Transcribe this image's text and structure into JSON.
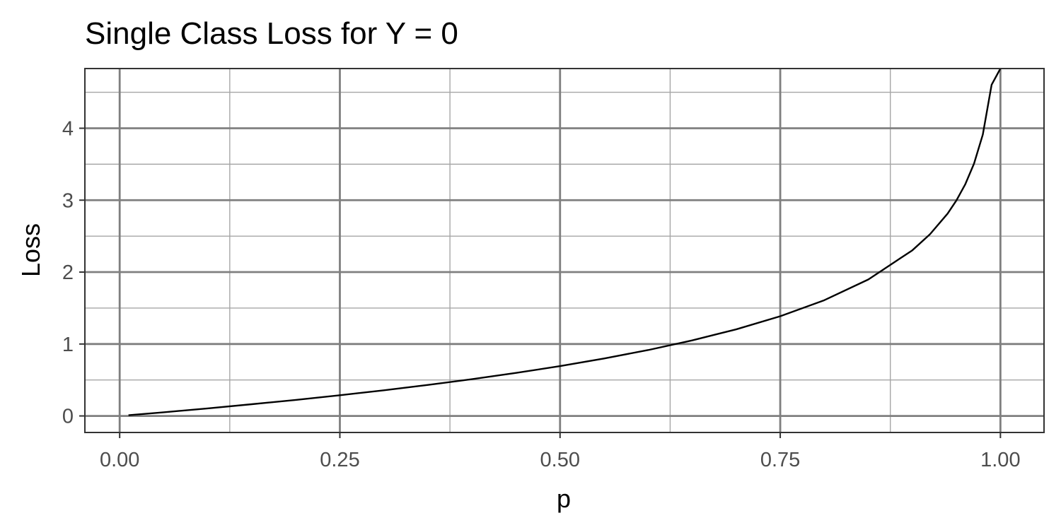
{
  "chart_data": {
    "type": "line",
    "title": "Single Class Loss for Y = 0",
    "xlabel": "p",
    "ylabel": "Loss",
    "xlim": [
      -0.0395,
      1.0495
    ],
    "ylim": [
      -0.23,
      4.83
    ],
    "x_ticks": [
      0,
      0.25,
      0.5,
      0.75,
      1
    ],
    "x_tick_labels": [
      "0.00",
      "0.25",
      "0.50",
      "0.75",
      "1.00"
    ],
    "y_ticks": [
      0,
      1,
      2,
      3,
      4
    ],
    "y_tick_labels": [
      "0",
      "1",
      "2",
      "3",
      "4"
    ],
    "x_minor_ticks": [
      0.125,
      0.375,
      0.625,
      0.875
    ],
    "y_minor_ticks": [
      0.5,
      1.5,
      2.5,
      3.5,
      4.5
    ],
    "grid": true,
    "legend": "none",
    "series": [
      {
        "line_color": "#000000",
        "x": [
          0.01,
          0.05,
          0.1,
          0.15,
          0.2,
          0.25,
          0.3,
          0.35,
          0.4,
          0.45,
          0.5,
          0.55,
          0.6,
          0.65,
          0.7,
          0.75,
          0.8,
          0.85,
          0.9,
          0.92,
          0.94,
          0.95,
          0.96,
          0.97,
          0.98,
          0.99,
          1.0
        ],
        "y": [
          0.01,
          0.051,
          0.105,
          0.163,
          0.223,
          0.288,
          0.357,
          0.431,
          0.511,
          0.598,
          0.693,
          0.799,
          0.916,
          1.05,
          1.204,
          1.386,
          1.609,
          1.897,
          2.303,
          2.526,
          2.813,
          2.996,
          3.219,
          3.507,
          3.912,
          4.605,
          4.83
        ]
      }
    ]
  },
  "colors": {
    "background": "#ffffff",
    "major_grid": "#7f7f7f",
    "minor_grid": "#a6a6a6",
    "panel_border": "#333333",
    "tick_label": "#4d4d4d",
    "line": "#000000"
  }
}
